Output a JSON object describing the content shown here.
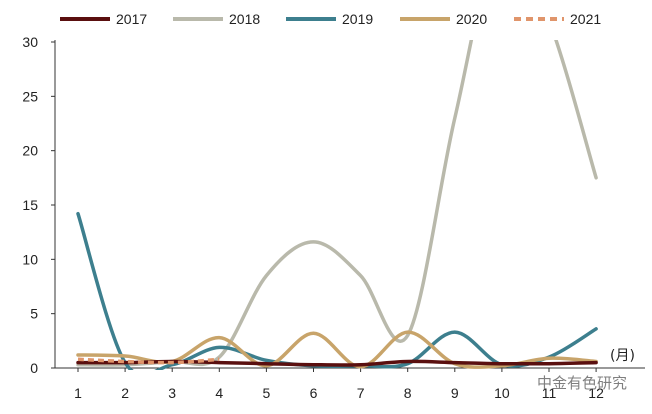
{
  "chart_data": {
    "type": "line",
    "categories": [
      "1",
      "2",
      "3",
      "4",
      "5",
      "6",
      "7",
      "8",
      "9",
      "10",
      "11",
      "12"
    ],
    "x_unit": "(月)",
    "ylim": [
      0,
      30
    ],
    "yticks": [
      0,
      5,
      10,
      15,
      20,
      25,
      30
    ],
    "grid": false,
    "legend_position": "top",
    "series": [
      {
        "name": "2017",
        "color": "#5a0f0f",
        "dash": false,
        "values": [
          0.5,
          0.5,
          0.6,
          0.5,
          0.4,
          0.3,
          0.3,
          0.6,
          0.5,
          0.4,
          0.4,
          0.5
        ]
      },
      {
        "name": "2018",
        "color": "#b9b9ab",
        "dash": false,
        "values": [
          0.3,
          0.3,
          0.6,
          1.0,
          8.5,
          11.6,
          8.5,
          3.0,
          23.0,
          40.0,
          32.0,
          17.5
        ]
      },
      {
        "name": "2019",
        "color": "#3d7f8e",
        "dash": false,
        "values": [
          14.2,
          0.5,
          0.3,
          1.9,
          0.7,
          0.2,
          0.2,
          0.4,
          3.3,
          0.3,
          1.0,
          3.6
        ]
      },
      {
        "name": "2020",
        "color": "#c8a46a",
        "dash": false,
        "values": [
          1.2,
          1.1,
          0.6,
          2.8,
          0.2,
          3.2,
          0.1,
          3.3,
          0.4,
          0.2,
          0.9,
          0.6
        ]
      },
      {
        "name": "2021",
        "color": "#e0956b",
        "dash": true,
        "values": [
          0.8,
          0.6,
          0.5,
          0.8,
          null,
          null,
          null,
          null,
          null,
          null,
          null,
          null
        ]
      }
    ]
  },
  "watermark": "中金有色研究"
}
